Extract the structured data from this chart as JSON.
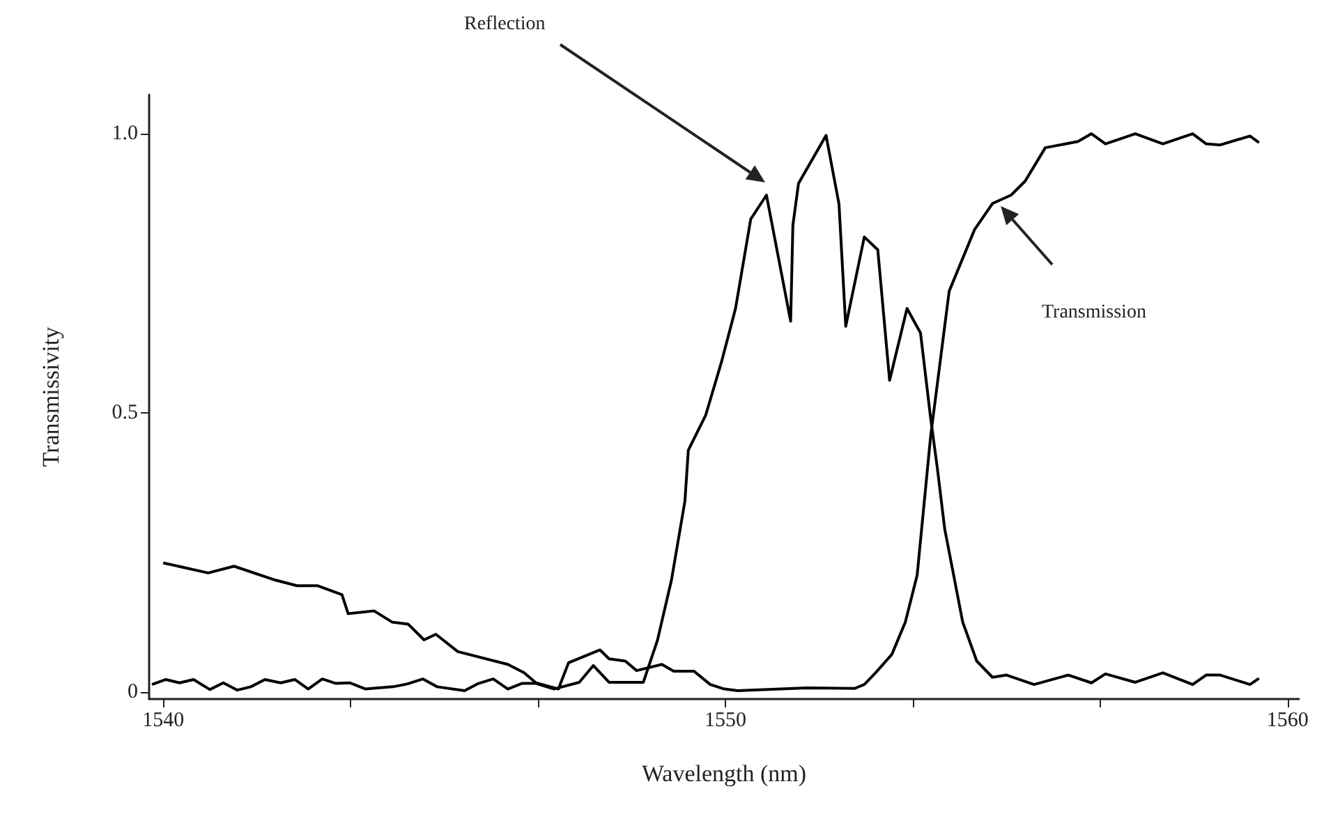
{
  "chart_data": {
    "type": "line",
    "xlabel": "Wavelength (nm)",
    "ylabel": "Transmissivity",
    "xlim": [
      1539.75,
      1560.2
    ],
    "ylim": [
      -0.013,
      1.07
    ],
    "xticks": [
      1540,
      {
        "value": 1543.33,
        "label": null
      },
      {
        "value": 1546.67,
        "label": null
      },
      1550,
      {
        "value": 1553.33,
        "label": null
      },
      {
        "value": 1556.67,
        "label": null
      },
      1560
    ],
    "yticks": [
      0,
      0.5,
      {
        "value": 1,
        "label": "1.0"
      }
    ],
    "grid": false,
    "marker": "none",
    "line_style": "solid",
    "annotations": [
      "Reflection",
      "Transmission"
    ],
    "series": [
      {
        "color": "#000000",
        "x": [
          1539.8,
          1540.05,
          1540.29,
          1540.54,
          1540.83,
          1541.07,
          1541.32,
          1541.56,
          1541.81,
          1542.09,
          1542.34,
          1542.58,
          1542.83,
          1543.07,
          1543.32,
          1543.6,
          1544.09,
          1544.34,
          1544.62,
          1544.87,
          1545.36,
          1545.61,
          1545.87,
          1546.13,
          1546.38,
          1546.63,
          1546.95,
          1547.4,
          1547.65,
          1547.93,
          1548.26,
          1548.54,
          1548.79,
          1549.04,
          1549.28,
          1549.34,
          1549.65,
          1549.93,
          1550.18,
          1550.45,
          1550.73,
          1551.16,
          1551.2,
          1551.3,
          1551.79,
          1552.02,
          1552.14,
          1552.47,
          1552.71,
          1552.92,
          1553.23,
          1553.47,
          1553.65,
          1553.77,
          1553.9,
          1554.22,
          1554.47,
          1554.75,
          1555.0,
          1555.49,
          1556.1,
          1556.51,
          1556.76,
          1557.29,
          1557.78,
          1558.31,
          1558.55,
          1558.8,
          1559.33,
          1559.49
        ],
        "values": [
          0.013,
          0.022,
          0.016,
          0.022,
          0.004,
          0.016,
          0.003,
          0.009,
          0.022,
          0.016,
          0.022,
          0.005,
          0.023,
          0.015,
          0.016,
          0.005,
          0.009,
          0.014,
          0.023,
          0.009,
          0.002,
          0.015,
          0.023,
          0.005,
          0.015,
          0.015,
          0.005,
          0.017,
          0.047,
          0.017,
          0.017,
          0.017,
          0.092,
          0.2,
          0.342,
          0.433,
          0.496,
          0.591,
          0.687,
          0.847,
          0.89,
          0.664,
          0.836,
          0.911,
          0.997,
          0.874,
          0.655,
          0.815,
          0.792,
          0.558,
          0.687,
          0.643,
          0.49,
          0.4,
          0.292,
          0.125,
          0.055,
          0.026,
          0.03,
          0.013,
          0.03,
          0.016,
          0.032,
          0.017,
          0.034,
          0.013,
          0.03,
          0.03,
          0.013,
          0.024
        ]
      },
      {
        "color": "#000000",
        "x": [
          1540.0,
          1540.8,
          1541.26,
          1542.0,
          1542.38,
          1542.75,
          1543.18,
          1543.29,
          1543.75,
          1544.07,
          1544.36,
          1544.64,
          1544.85,
          1545.24,
          1546.13,
          1546.42,
          1546.63,
          1547.03,
          1547.21,
          1547.77,
          1547.93,
          1548.22,
          1548.42,
          1548.87,
          1549.08,
          1549.44,
          1549.73,
          1549.98,
          1550.22,
          1551.45,
          1552.3,
          1552.47,
          1552.67,
          1552.96,
          1553.2,
          1553.41,
          1553.65,
          1553.98,
          1554.43,
          1554.75,
          1555.08,
          1555.33,
          1555.69,
          1556.27,
          1556.51,
          1556.76,
          1557.29,
          1557.78,
          1558.31,
          1558.55,
          1558.8,
          1559.33,
          1559.49
        ],
        "values": [
          0.231,
          0.213,
          0.225,
          0.2,
          0.19,
          0.19,
          0.174,
          0.14,
          0.145,
          0.125,
          0.121,
          0.093,
          0.103,
          0.072,
          0.049,
          0.034,
          0.016,
          0.005,
          0.052,
          0.075,
          0.059,
          0.055,
          0.038,
          0.049,
          0.037,
          0.037,
          0.013,
          0.005,
          0.002,
          0.007,
          0.006,
          0.013,
          0.034,
          0.067,
          0.125,
          0.209,
          0.458,
          0.718,
          0.828,
          0.875,
          0.89,
          0.915,
          0.975,
          0.986,
          1.0,
          0.982,
          1.0,
          0.982,
          1.0,
          0.982,
          0.98,
          0.996,
          0.984
        ]
      }
    ]
  }
}
